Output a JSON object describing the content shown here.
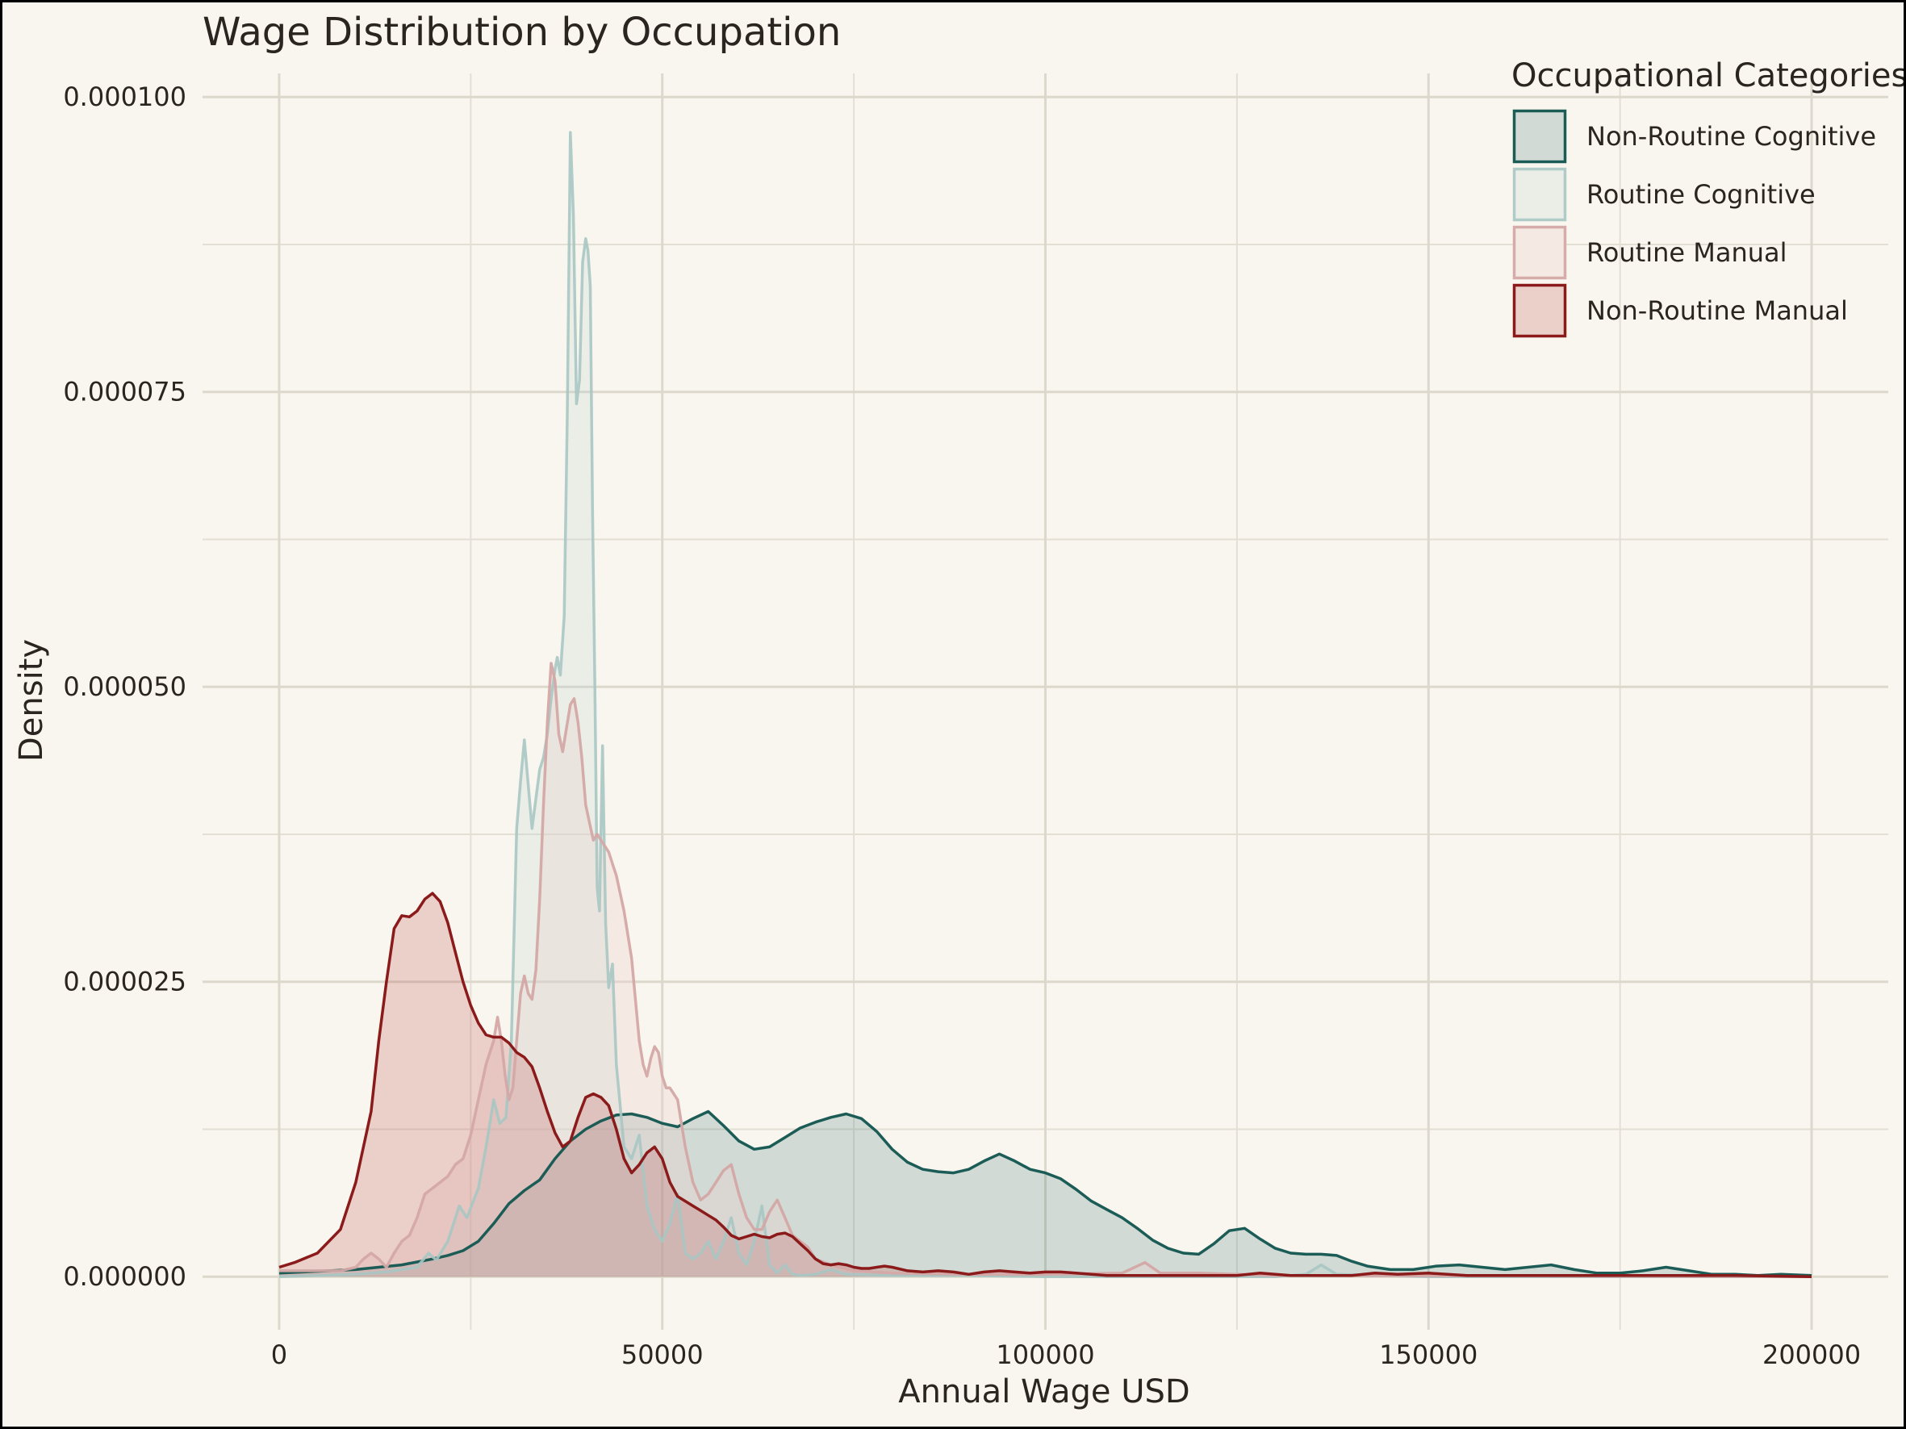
{
  "chart_data": {
    "type": "area",
    "title": "Wage Distribution by Occupation",
    "xlabel": "Annual Wage USD",
    "ylabel": "Density",
    "xlim": [
      -10000,
      210000
    ],
    "ylim": [
      -4.5e-06,
      0.000102
    ],
    "x_ticks": [
      0,
      50000,
      100000,
      150000,
      200000
    ],
    "x_tick_labels": [
      "0",
      "50000",
      "100000",
      "150000",
      "200000"
    ],
    "y_ticks": [
      0,
      2.5e-05,
      5e-05,
      7.5e-05,
      0.0001
    ],
    "y_tick_labels": [
      "0.000000",
      "0.000025",
      "0.000050",
      "0.000075",
      "0.000100"
    ],
    "grid": true,
    "legend": {
      "title": "Occupational Categories",
      "position": "top-right"
    },
    "series": [
      {
        "name": "Non-Routine Cognitive",
        "stroke": "#1c5c56",
        "fill": "#1c5c56",
        "fill_opacity": 0.18,
        "stroke_opacity": 1.0,
        "x": [
          0,
          10000,
          16000,
          20000,
          22000,
          24000,
          26000,
          28000,
          30000,
          32000,
          34000,
          36000,
          38000,
          40000,
          42000,
          44000,
          46000,
          48000,
          50000,
          52000,
          54000,
          56000,
          58000,
          60000,
          62000,
          64000,
          66000,
          68000,
          70000,
          72000,
          74000,
          76000,
          78000,
          80000,
          82000,
          84000,
          86000,
          88000,
          90000,
          92000,
          94000,
          96000,
          98000,
          100000,
          102000,
          104000,
          106000,
          108000,
          110000,
          112000,
          114000,
          116000,
          118000,
          120000,
          122000,
          124000,
          126000,
          128000,
          130000,
          132000,
          134000,
          136000,
          138000,
          140000,
          142000,
          145000,
          148000,
          151000,
          154000,
          157000,
          160000,
          163000,
          166000,
          169000,
          172000,
          175000,
          178000,
          181000,
          184000,
          187000,
          190000,
          193000,
          196000,
          200000
        ],
        "y": [
          3e-07,
          6e-07,
          1e-06,
          1.5e-06,
          1.8e-06,
          2.2e-06,
          3e-06,
          4.5e-06,
          6.2e-06,
          7.3e-06,
          8.2e-06,
          1e-05,
          1.15e-05,
          1.25e-05,
          1.32e-05,
          1.37e-05,
          1.38e-05,
          1.35e-05,
          1.3e-05,
          1.27e-05,
          1.34e-05,
          1.4e-05,
          1.28e-05,
          1.15e-05,
          1.08e-05,
          1.1e-05,
          1.18e-05,
          1.26e-05,
          1.31e-05,
          1.35e-05,
          1.38e-05,
          1.34e-05,
          1.23e-05,
          1.08e-05,
          9.7e-06,
          9.1e-06,
          8.9e-06,
          8.8e-06,
          9.1e-06,
          9.8e-06,
          1.04e-05,
          9.8e-06,
          9.1e-06,
          8.8e-06,
          8.3e-06,
          7.4e-06,
          6.4e-06,
          5.7e-06,
          5e-06,
          4.1e-06,
          3.1e-06,
          2.4e-06,
          2e-06,
          1.9e-06,
          2.8e-06,
          3.9e-06,
          4.1e-06,
          3.2e-06,
          2.4e-06,
          2e-06,
          1.9e-06,
          1.9e-06,
          1.8e-06,
          1.3e-06,
          9e-07,
          6e-07,
          6e-07,
          9e-07,
          1e-06,
          8e-07,
          6e-07,
          8e-07,
          1e-06,
          6e-07,
          3e-07,
          3e-07,
          5e-07,
          8e-07,
          5e-07,
          2e-07,
          2e-07,
          1e-07,
          2e-07,
          1e-07
        ]
      },
      {
        "name": "Routine Cognitive",
        "stroke": "#a8c7c3",
        "fill": "#b8d0cb",
        "fill_opacity": 0.22,
        "stroke_opacity": 0.9,
        "x": [
          0,
          10000,
          14000,
          18000,
          19500,
          20500,
          22000,
          23500,
          24500,
          26000,
          27000,
          28000,
          28800,
          29600,
          30300,
          31000,
          31500,
          32000,
          33000,
          34000,
          34500,
          35000,
          35500,
          36000,
          36300,
          36700,
          37200,
          37600,
          38000,
          38400,
          38800,
          39200,
          39600,
          40000,
          40300,
          40600,
          40900,
          41200,
          41500,
          41800,
          42200,
          42600,
          43000,
          43500,
          44000,
          45000,
          46000,
          47000,
          48000,
          49000,
          50000,
          51000,
          52000,
          53000,
          54000,
          55000,
          56000,
          57000,
          58000,
          59000,
          60000,
          61000,
          62000,
          63000,
          64000,
          65000,
          66000,
          67000,
          68000,
          70000,
          72000,
          74000,
          80000,
          90000,
          100000,
          110000,
          120000,
          130000,
          134000,
          136000,
          138000,
          150000,
          200000
        ],
        "y": [
          0,
          2e-07,
          4e-07,
          8e-07,
          2e-06,
          1.4e-06,
          3e-06,
          6e-06,
          5e-06,
          7.5e-06,
          1.1e-05,
          1.5e-05,
          1.3e-05,
          1.35e-05,
          2e-05,
          3.8e-05,
          4.2e-05,
          4.55e-05,
          3.8e-05,
          4.3e-05,
          4.4e-05,
          4.6e-05,
          4.9e-05,
          5.15e-05,
          5.25e-05,
          5.1e-05,
          5.6e-05,
          7.3e-05,
          9.7e-05,
          9e-05,
          7.4e-05,
          7.6e-05,
          8.6e-05,
          8.8e-05,
          8.7e-05,
          8.4e-05,
          6.5e-05,
          5e-05,
          3.3e-05,
          3.1e-05,
          4.5e-05,
          3e-05,
          2.45e-05,
          2.65e-05,
          1.8e-05,
          1.1e-05,
          1e-05,
          1.2e-05,
          6e-06,
          4e-06,
          3e-06,
          4.5e-06,
          7e-06,
          2e-06,
          1.5e-06,
          2e-06,
          3e-06,
          1.5e-06,
          3e-06,
          5e-06,
          2e-06,
          1e-06,
          3e-06,
          6e-06,
          1e-06,
          3e-07,
          1e-06,
          2e-07,
          1e-07,
          2e-07,
          6e-07,
          2e-07,
          1e-07,
          1e-07,
          0,
          0,
          0,
          0,
          2e-07,
          1e-06,
          2e-07,
          0,
          0
        ]
      },
      {
        "name": "Routine Manual",
        "stroke": "#d4a8a6",
        "fill": "#ebd2cf",
        "fill_opacity": 0.35,
        "stroke_opacity": 0.95,
        "x": [
          0,
          8000,
          10000,
          11000,
          12000,
          13000,
          14000,
          15000,
          16000,
          17000,
          18000,
          19000,
          20000,
          21000,
          22000,
          23000,
          24000,
          25000,
          26000,
          27000,
          28000,
          28500,
          29000,
          29500,
          30000,
          30500,
          31000,
          31500,
          32000,
          32500,
          33000,
          33500,
          34000,
          34500,
          35000,
          35500,
          36000,
          36500,
          37000,
          37500,
          38000,
          38500,
          39000,
          39500,
          40000,
          40500,
          41000,
          41500,
          42000,
          42500,
          43000,
          43500,
          44000,
          45000,
          46000,
          47000,
          47500,
          48000,
          48500,
          49000,
          49500,
          50000,
          50500,
          51000,
          52000,
          53000,
          54000,
          55000,
          56000,
          57000,
          58000,
          59000,
          60000,
          61000,
          62000,
          63000,
          64000,
          65000,
          66000,
          67000,
          68000,
          69000,
          70000,
          72000,
          75000,
          80000,
          90000,
          100000,
          110000,
          113000,
          115000,
          120000,
          130000,
          200000
        ],
        "y": [
          5e-07,
          5e-07,
          8e-07,
          1.5e-06,
          2e-06,
          1.5e-06,
          8e-07,
          2e-06,
          3e-06,
          3.5e-06,
          5e-06,
          7e-06,
          7.5e-06,
          8e-06,
          8.5e-06,
          9.5e-06,
          1e-05,
          1.2e-05,
          1.5e-05,
          1.8e-05,
          2e-05,
          2.2e-05,
          2e-05,
          1.7e-05,
          1.5e-05,
          1.6e-05,
          2e-05,
          2.4e-05,
          2.55e-05,
          2.4e-05,
          2.35e-05,
          2.6e-05,
          3.2e-05,
          4e-05,
          4.7e-05,
          5.2e-05,
          5.05e-05,
          4.6e-05,
          4.45e-05,
          4.65e-05,
          4.85e-05,
          4.9e-05,
          4.7e-05,
          4.4e-05,
          4e-05,
          3.85e-05,
          3.7e-05,
          3.75e-05,
          3.7e-05,
          3.65e-05,
          3.6e-05,
          3.5e-05,
          3.4e-05,
          3.1e-05,
          2.7e-05,
          2e-05,
          1.8e-05,
          1.7e-05,
          1.85e-05,
          1.95e-05,
          1.9e-05,
          1.7e-05,
          1.6e-05,
          1.6e-05,
          1.5e-05,
          1.1e-05,
          8e-06,
          6.5e-06,
          7e-06,
          8e-06,
          9e-06,
          9.5e-06,
          7e-06,
          5e-06,
          4e-06,
          4e-06,
          5.5e-06,
          6.5e-06,
          5e-06,
          3.5e-06,
          3e-06,
          2.5e-06,
          1.5e-06,
          1e-06,
          5e-07,
          3e-07,
          2e-07,
          2e-07,
          3e-07,
          1.2e-06,
          3e-07,
          3e-07,
          1e-07,
          0
        ]
      },
      {
        "name": "Non-Routine Manual",
        "stroke": "#8b1a1a",
        "fill": "#b94a48",
        "fill_opacity": 0.22,
        "stroke_opacity": 1.0,
        "x": [
          0,
          2000,
          5000,
          8000,
          10000,
          12000,
          13000,
          14000,
          15000,
          16000,
          17000,
          18000,
          19000,
          20000,
          21000,
          22000,
          23000,
          24000,
          25000,
          26000,
          27000,
          28000,
          29000,
          30000,
          31000,
          32000,
          33000,
          34000,
          35000,
          36000,
          37000,
          38000,
          39000,
          40000,
          41000,
          42000,
          43000,
          44000,
          45000,
          46000,
          47000,
          48000,
          49000,
          50000,
          51000,
          52000,
          53000,
          54000,
          55000,
          56000,
          57000,
          58000,
          59000,
          60000,
          61000,
          62000,
          63000,
          64000,
          65000,
          66000,
          67000,
          68000,
          69000,
          70000,
          71000,
          72000,
          73000,
          74000,
          75000,
          76000,
          77000,
          78000,
          79000,
          80000,
          82000,
          84000,
          86000,
          88000,
          90000,
          92000,
          94000,
          96000,
          98000,
          100000,
          102000,
          104000,
          106000,
          108000,
          110000,
          115000,
          120000,
          125000,
          128000,
          132000,
          136000,
          140000,
          143000,
          146000,
          150000,
          155000,
          160000,
          170000,
          180000,
          190000,
          200000
        ],
        "y": [
          8e-07,
          1.2e-06,
          2e-06,
          4e-06,
          8e-06,
          1.4e-05,
          2e-05,
          2.5e-05,
          2.95e-05,
          3.06e-05,
          3.05e-05,
          3.1e-05,
          3.2e-05,
          3.25e-05,
          3.18e-05,
          3e-05,
          2.75e-05,
          2.5e-05,
          2.3e-05,
          2.15e-05,
          2.05e-05,
          2.03e-05,
          2.03e-05,
          1.98e-05,
          1.9e-05,
          1.86e-05,
          1.78e-05,
          1.6e-05,
          1.4e-05,
          1.22e-05,
          1.1e-05,
          1.15e-05,
          1.35e-05,
          1.52e-05,
          1.55e-05,
          1.52e-05,
          1.45e-05,
          1.25e-05,
          1e-05,
          8.8e-06,
          9.5e-06,
          1.05e-05,
          1.1e-05,
          1e-05,
          8e-06,
          6.8e-06,
          6.4e-06,
          6e-06,
          5.6e-06,
          5.2e-06,
          4.8e-06,
          4.2e-06,
          3.5e-06,
          3.2e-06,
          3.4e-06,
          3.6e-06,
          3.4e-06,
          3.3e-06,
          3.6e-06,
          3.7e-06,
          3.4e-06,
          2.8e-06,
          2.2e-06,
          1.5e-06,
          1.1e-06,
          1e-06,
          1.1e-06,
          1e-06,
          8e-07,
          7e-07,
          7e-07,
          8e-07,
          9e-07,
          8e-07,
          5e-07,
          4e-07,
          5e-07,
          4e-07,
          2e-07,
          4e-07,
          5e-07,
          4e-07,
          3e-07,
          4e-07,
          4e-07,
          3e-07,
          2e-07,
          1e-07,
          1e-07,
          1e-07,
          1e-07,
          1e-07,
          3e-07,
          1e-07,
          1e-07,
          1e-07,
          3e-07,
          2e-07,
          3e-07,
          1e-07,
          1e-07,
          1e-07,
          1e-07,
          1e-07,
          0
        ]
      }
    ],
    "draw_order": [
      0,
      1,
      2,
      3
    ],
    "colors": {
      "background": "#f9f6ef",
      "grid": "#dcd8cc",
      "text": "#2b2522"
    }
  }
}
